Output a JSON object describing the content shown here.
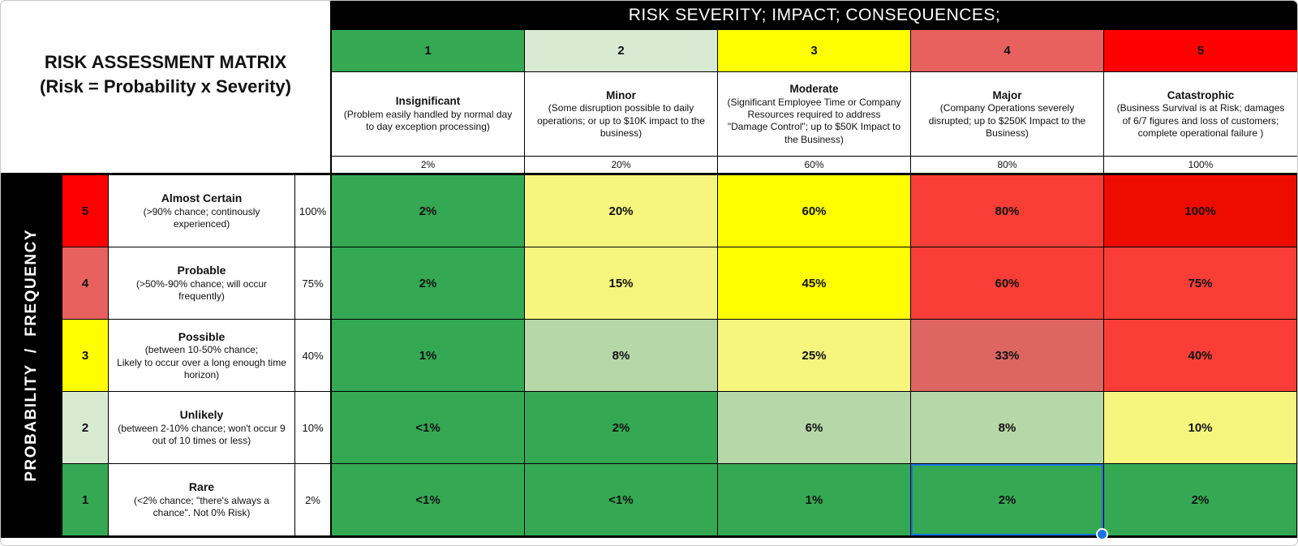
{
  "colors": {
    "green": "#34a853",
    "light_green_cell": "#b6d7a8",
    "light_green_header": "#d9ead3",
    "yellow": "#fefe00",
    "pale_yellow": "#f6f67e",
    "salmon": "#e8615e",
    "muted_red": "#dd6662",
    "red": "#f93e38",
    "bright_red": "#ee0b00",
    "red_pure": "#fe0000",
    "selection_blue": "#1a73e8",
    "header_black": "#000000"
  },
  "title": {
    "line1": "RISK ASSESSMENT MATRIX",
    "line2": "(Risk = Probability x Severity)"
  },
  "severity_header": "RISK SEVERITY; IMPACT; CONSEQUENCES;",
  "probability_header": "PROBABILITY  /  FREQUENCY",
  "severity_columns": [
    {
      "number": "1",
      "tone": "green",
      "name": "Insignificant",
      "desc": "(Problem easily handled by normal day to day exception processing)",
      "percent": "2%"
    },
    {
      "number": "2",
      "tone": "light_green_header",
      "name": "Minor",
      "desc": "(Some disruption possible to daily operations;  or up to $10K impact to the business)",
      "percent": "20%"
    },
    {
      "number": "3",
      "tone": "yellow",
      "name": "Moderate",
      "desc": "(Significant Employee Time or Company Resources required to address \"Damage Control\";  up to $50K Impact to the Business)",
      "percent": "60%"
    },
    {
      "number": "4",
      "tone": "salmon",
      "name": "Major",
      "desc": "(Company Operations severely disrupted;  up to $250K Impact to the Business)",
      "percent": "80%"
    },
    {
      "number": "5",
      "tone": "red_pure",
      "name": "Catastrophic",
      "desc": "(Business Survival is at Risk; damages of 6/7 figures and loss of customers;  complete operational failure )",
      "percent": "100%"
    }
  ],
  "probability_rows": [
    {
      "number": "5",
      "tone": "red_pure",
      "name": "Almost Certain",
      "desc": "(>90% chance; continously experienced)",
      "percent": "100%"
    },
    {
      "number": "4",
      "tone": "salmon",
      "name": "Probable",
      "desc": "(>50%-90% chance; will occur frequently)",
      "percent": "75%"
    },
    {
      "number": "3",
      "tone": "yellow",
      "name": "Possible",
      "desc": "(between 10-50% chance;\nLikely to occur over a long enough time horizon)",
      "percent": "40%"
    },
    {
      "number": "2",
      "tone": "light_green_header",
      "name": "Unlikely",
      "desc": "(between 2-10% chance; won't occur 9 out of 10 times or less)",
      "percent": "10%"
    },
    {
      "number": "1",
      "tone": "green",
      "name": "Rare",
      "desc": "(<2% chance;  \"there's always a chance\".  Not 0% Risk)",
      "percent": "2%"
    }
  ],
  "matrix": {
    "rows": [
      {
        "cells": [
          {
            "value": "2%",
            "tone": "green"
          },
          {
            "value": "20%",
            "tone": "pale_yellow"
          },
          {
            "value": "60%",
            "tone": "yellow"
          },
          {
            "value": "80%",
            "tone": "red"
          },
          {
            "value": "100%",
            "tone": "bright_red"
          }
        ]
      },
      {
        "cells": [
          {
            "value": "2%",
            "tone": "green"
          },
          {
            "value": "15%",
            "tone": "pale_yellow"
          },
          {
            "value": "45%",
            "tone": "yellow"
          },
          {
            "value": "60%",
            "tone": "red"
          },
          {
            "value": "75%",
            "tone": "red"
          }
        ]
      },
      {
        "cells": [
          {
            "value": "1%",
            "tone": "green"
          },
          {
            "value": "8%",
            "tone": "light_green_cell"
          },
          {
            "value": "25%",
            "tone": "pale_yellow"
          },
          {
            "value": "33%",
            "tone": "muted_red"
          },
          {
            "value": "40%",
            "tone": "red"
          }
        ]
      },
      {
        "cells": [
          {
            "value": "<1%",
            "tone": "green"
          },
          {
            "value": "2%",
            "tone": "green"
          },
          {
            "value": "6%",
            "tone": "light_green_cell"
          },
          {
            "value": "8%",
            "tone": "light_green_cell"
          },
          {
            "value": "10%",
            "tone": "pale_yellow"
          }
        ]
      },
      {
        "cells": [
          {
            "value": "<1%",
            "tone": "green"
          },
          {
            "value": "<1%",
            "tone": "green"
          },
          {
            "value": "1%",
            "tone": "green"
          },
          {
            "value": "2%",
            "tone": "green"
          },
          {
            "value": "2%",
            "tone": "green"
          }
        ]
      }
    ]
  },
  "selection": {
    "probability_level": "1",
    "severity_level": "4",
    "value": "2%"
  }
}
